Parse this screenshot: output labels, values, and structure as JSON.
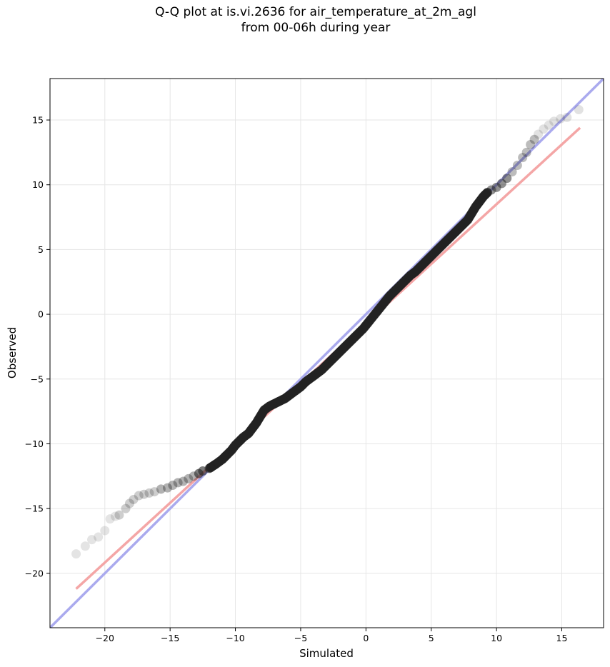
{
  "chart_data": {
    "type": "scatter",
    "title_lines": [
      "Q-Q plot at is.vi.2636 for air_temperature_at_2m_agl",
      "from 00-06h during year"
    ],
    "xlabel": "Simulated",
    "ylabel": "Observed",
    "xlim": [
      -24.2,
      18.2
    ],
    "ylim": [
      -24.2,
      18.2
    ],
    "xticks": [
      -20,
      -15,
      -10,
      -5,
      0,
      5,
      10,
      15
    ],
    "yticks": [
      -20,
      -15,
      -10,
      -5,
      0,
      5,
      10,
      15
    ],
    "grid": true,
    "reference_lines": [
      {
        "name": "",
        "from": [
          -24.2,
          -24.2
        ],
        "to": [
          18.2,
          18.2
        ],
        "color": "#aaaaee"
      },
      {
        "name": "",
        "from": [
          -22.2,
          -21.2
        ],
        "to": [
          16.4,
          14.4
        ],
        "color": "#f4a6a6"
      }
    ],
    "quantile_points": [
      [
        -22.2,
        -18.5
      ],
      [
        -21.5,
        -17.9
      ],
      [
        -21.0,
        -17.4
      ],
      [
        -20.5,
        -17.2
      ],
      [
        -20.0,
        -16.7
      ],
      [
        -19.6,
        -15.8
      ],
      [
        -19.2,
        -15.6
      ],
      [
        -18.9,
        -15.5
      ],
      [
        -18.4,
        -15.0
      ],
      [
        -18.1,
        -14.6
      ],
      [
        -17.8,
        -14.3
      ],
      [
        -17.4,
        -14.0
      ],
      [
        -17.0,
        -13.9
      ],
      [
        -16.6,
        -13.8
      ],
      [
        -16.2,
        -13.7
      ],
      [
        -15.7,
        -13.5
      ],
      [
        -15.2,
        -13.4
      ],
      [
        -14.8,
        -13.2
      ],
      [
        -14.4,
        -13.0
      ],
      [
        -14.0,
        -12.9
      ],
      [
        -13.6,
        -12.7
      ],
      [
        -13.2,
        -12.5
      ],
      [
        -12.8,
        -12.3
      ],
      [
        -12.5,
        -12.1
      ],
      [
        -12.0,
        -11.9
      ],
      [
        -11.7,
        -11.7
      ],
      [
        -11.4,
        -11.5
      ],
      [
        -11.0,
        -11.2
      ],
      [
        -10.7,
        -10.9
      ],
      [
        -10.3,
        -10.5
      ],
      [
        -10.0,
        -10.1
      ],
      [
        -9.7,
        -9.8
      ],
      [
        -9.4,
        -9.5
      ],
      [
        -9.0,
        -9.2
      ],
      [
        -8.7,
        -8.8
      ],
      [
        -8.4,
        -8.4
      ],
      [
        -8.1,
        -7.9
      ],
      [
        -7.8,
        -7.4
      ],
      [
        -7.4,
        -7.1
      ],
      [
        -7.0,
        -6.9
      ],
      [
        -6.6,
        -6.7
      ],
      [
        -6.2,
        -6.5
      ],
      [
        -5.8,
        -6.2
      ],
      [
        -5.4,
        -5.9
      ],
      [
        -5.0,
        -5.6
      ],
      [
        -4.6,
        -5.2
      ],
      [
        -4.2,
        -4.9
      ],
      [
        -3.8,
        -4.6
      ],
      [
        -3.4,
        -4.3
      ],
      [
        -3.0,
        -3.9
      ],
      [
        -2.6,
        -3.5
      ],
      [
        -2.2,
        -3.1
      ],
      [
        -1.8,
        -2.7
      ],
      [
        -1.4,
        -2.3
      ],
      [
        -1.0,
        -1.9
      ],
      [
        -0.6,
        -1.5
      ],
      [
        -0.2,
        -1.1
      ],
      [
        0.2,
        -0.6
      ],
      [
        0.6,
        -0.1
      ],
      [
        1.0,
        0.4
      ],
      [
        1.4,
        0.9
      ],
      [
        1.8,
        1.4
      ],
      [
        2.2,
        1.8
      ],
      [
        2.6,
        2.2
      ],
      [
        3.0,
        2.6
      ],
      [
        3.4,
        3.0
      ],
      [
        3.8,
        3.3
      ],
      [
        4.2,
        3.7
      ],
      [
        4.6,
        4.1
      ],
      [
        5.0,
        4.5
      ],
      [
        5.4,
        4.9
      ],
      [
        5.8,
        5.3
      ],
      [
        6.2,
        5.7
      ],
      [
        6.6,
        6.1
      ],
      [
        7.0,
        6.5
      ],
      [
        7.4,
        6.9
      ],
      [
        7.8,
        7.3
      ],
      [
        8.1,
        7.8
      ],
      [
        8.4,
        8.3
      ],
      [
        8.7,
        8.7
      ],
      [
        9.0,
        9.1
      ],
      [
        9.3,
        9.4
      ],
      [
        9.6,
        9.6
      ],
      [
        10.0,
        9.8
      ],
      [
        10.4,
        10.1
      ],
      [
        10.8,
        10.5
      ],
      [
        11.2,
        11.0
      ],
      [
        11.6,
        11.5
      ],
      [
        12.0,
        12.1
      ],
      [
        12.3,
        12.5
      ],
      [
        12.6,
        13.1
      ],
      [
        12.9,
        13.5
      ],
      [
        13.2,
        13.9
      ],
      [
        13.6,
        14.3
      ],
      [
        14.0,
        14.6
      ],
      [
        14.4,
        14.9
      ],
      [
        14.9,
        15.1
      ],
      [
        15.4,
        15.2
      ],
      [
        16.3,
        15.8
      ]
    ]
  }
}
